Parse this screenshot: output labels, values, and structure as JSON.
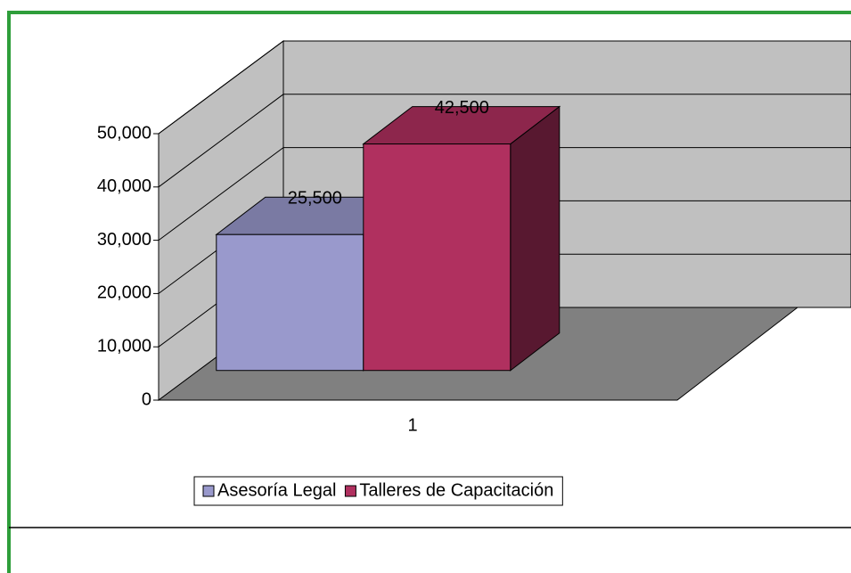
{
  "chart_data": {
    "type": "bar",
    "categories": [
      "1"
    ],
    "series": [
      {
        "name": "Asesoría Legal",
        "color": "#9999cc",
        "values": [
          25500
        ],
        "value_labels": [
          "25,500"
        ]
      },
      {
        "name": "Talleres de Capacitación",
        "color": "#b0305f",
        "values": [
          42500
        ],
        "value_labels": [
          "42,500"
        ]
      }
    ],
    "ylim": [
      0,
      50000
    ],
    "yticks": [
      0,
      {
        "value": 10000,
        "label": "10,000"
      },
      {
        "value": 20000,
        "label": "20,000"
      },
      {
        "value": 30000,
        "label": "30,000"
      },
      {
        "value": 40000,
        "label": "40,000"
      },
      {
        "value": 50000,
        "label": "50,000"
      }
    ],
    "grid": true,
    "legend": "bottom"
  }
}
